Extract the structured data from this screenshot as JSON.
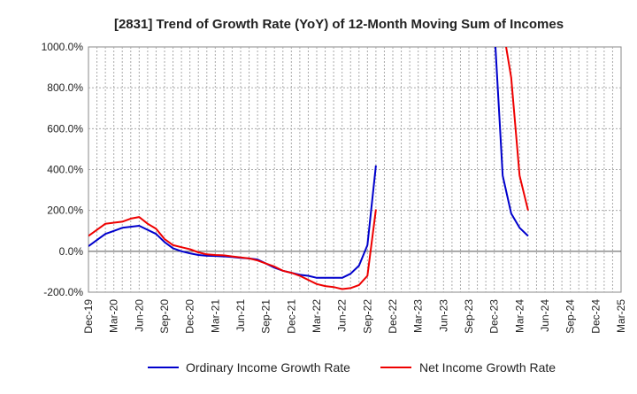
{
  "chart_data": {
    "type": "line",
    "title": "[2831]  Trend of Growth Rate (YoY) of 12-Month Moving Sum of Incomes",
    "xlabel": "",
    "ylabel": "",
    "ylim": [
      -200,
      1000
    ],
    "yticks": [
      "1000.0%",
      "800.0%",
      "600.0%",
      "400.0%",
      "200.0%",
      "0.0%",
      "-200.0%"
    ],
    "ytick_values": [
      1000,
      800,
      600,
      400,
      200,
      0,
      -200
    ],
    "x_tick_labels": [
      "Dec-19",
      "Mar-20",
      "Jun-20",
      "Sep-20",
      "Dec-20",
      "Mar-21",
      "Jun-21",
      "Sep-21",
      "Dec-21",
      "Mar-22",
      "Jun-22",
      "Sep-22",
      "Dec-22",
      "Mar-23",
      "Jun-23",
      "Sep-23",
      "Dec-23",
      "Mar-24",
      "Jun-24",
      "Sep-24",
      "Dec-24",
      "Mar-25"
    ],
    "grid": true,
    "legend_position": "bottom",
    "series": [
      {
        "name": "Ordinary Income Growth Rate",
        "color": "#0000cc",
        "values": [
          25,
          55,
          85,
          100,
          115,
          120,
          125,
          105,
          85,
          45,
          15,
          0,
          -10,
          -18,
          -22,
          -23,
          -25,
          -28,
          -32,
          -35,
          -40,
          -60,
          -80,
          -95,
          -105,
          -115,
          -120,
          -130,
          -130,
          -130,
          -130,
          -110,
          -70,
          30,
          420,
          null,
          null,
          null,
          null,
          null,
          null,
          null,
          null,
          null,
          null,
          null,
          null,
          null,
          1100,
          370,
          185,
          115,
          75
        ]
      },
      {
        "name": "Net Income Growth Rate",
        "color": "#ee0000",
        "values": [
          75,
          105,
          135,
          140,
          145,
          160,
          168,
          135,
          110,
          60,
          30,
          20,
          10,
          -5,
          -15,
          -18,
          -20,
          -25,
          -30,
          -35,
          -45,
          -60,
          -75,
          -95,
          -105,
          -120,
          -140,
          -160,
          -170,
          -175,
          -185,
          -180,
          -165,
          -120,
          205,
          null,
          null,
          null,
          null,
          null,
          null,
          null,
          null,
          null,
          null,
          null,
          null,
          null,
          null,
          1100,
          850,
          370,
          200
        ]
      }
    ]
  }
}
